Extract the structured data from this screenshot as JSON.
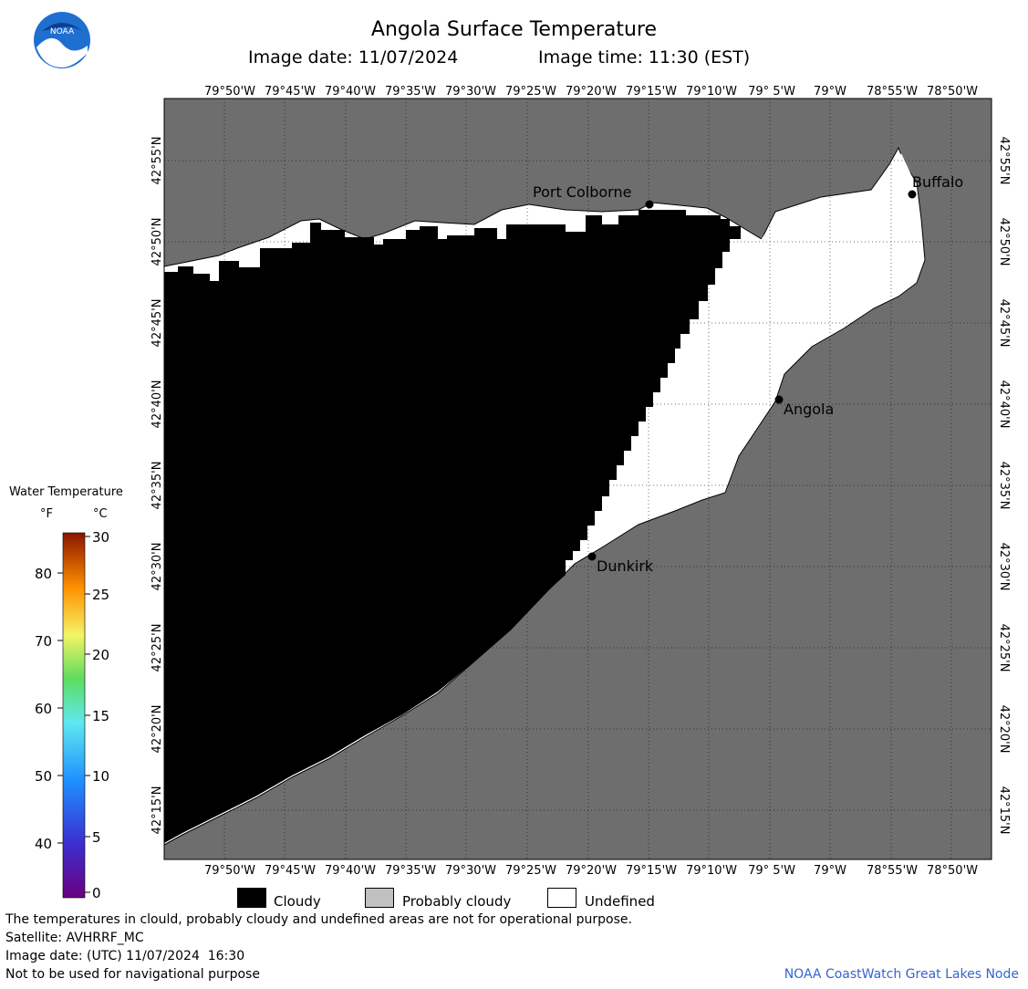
{
  "header": {
    "title": "Angola Surface Temperature",
    "image_date": "Image date: 11/07/2024",
    "image_time": "Image time: 11:30 (EST)",
    "logo_text": "NOAA"
  },
  "map": {
    "lon_ticks": [
      "79°50'W",
      "79°45'W",
      "79°40'W",
      "79°35'W",
      "79°30'W",
      "79°25'W",
      "79°20'W",
      "79°15'W",
      "79°10'W",
      "79° 5'W",
      "79°W",
      "78°55'W",
      "78°50'W"
    ],
    "lat_ticks": [
      "42°55'N",
      "42°50'N",
      "42°45'N",
      "42°40'N",
      "42°35'N",
      "42°30'N",
      "42°25'N",
      "42°20'N",
      "42°15'N"
    ],
    "cities": [
      {
        "name": "Port Colborne"
      },
      {
        "name": "Buffalo"
      },
      {
        "name": "Angola"
      },
      {
        "name": "Dunkirk"
      }
    ],
    "colors": {
      "land": "#6e6e6e",
      "cloudy": "#000000",
      "undefined": "#ffffff",
      "probably_cloudy": "#c0c0c0"
    }
  },
  "scale": {
    "title": "Water Temperature",
    "unit_f": "°F",
    "unit_c": "°C",
    "f_labels": [
      "80",
      "70",
      "60",
      "50",
      "40"
    ],
    "c_labels": [
      "30",
      "25",
      "20",
      "15",
      "10",
      "5",
      "0"
    ]
  },
  "legend": {
    "cloudy": "Cloudy",
    "probably_cloudy": "Probably cloudy",
    "undefined": "Undefined"
  },
  "footer": {
    "disclaimer": "The temperatures in clould, probably cloudy and undefined areas are not for operational purpose.",
    "satellite": "Satellite: AVHRRF_MC",
    "utc_date": "Image date: (UTC) 11/07/2024  16:30",
    "nav_warning": "Not to be used for navigational purpose",
    "credit": "NOAA CoastWatch Great Lakes Node"
  }
}
